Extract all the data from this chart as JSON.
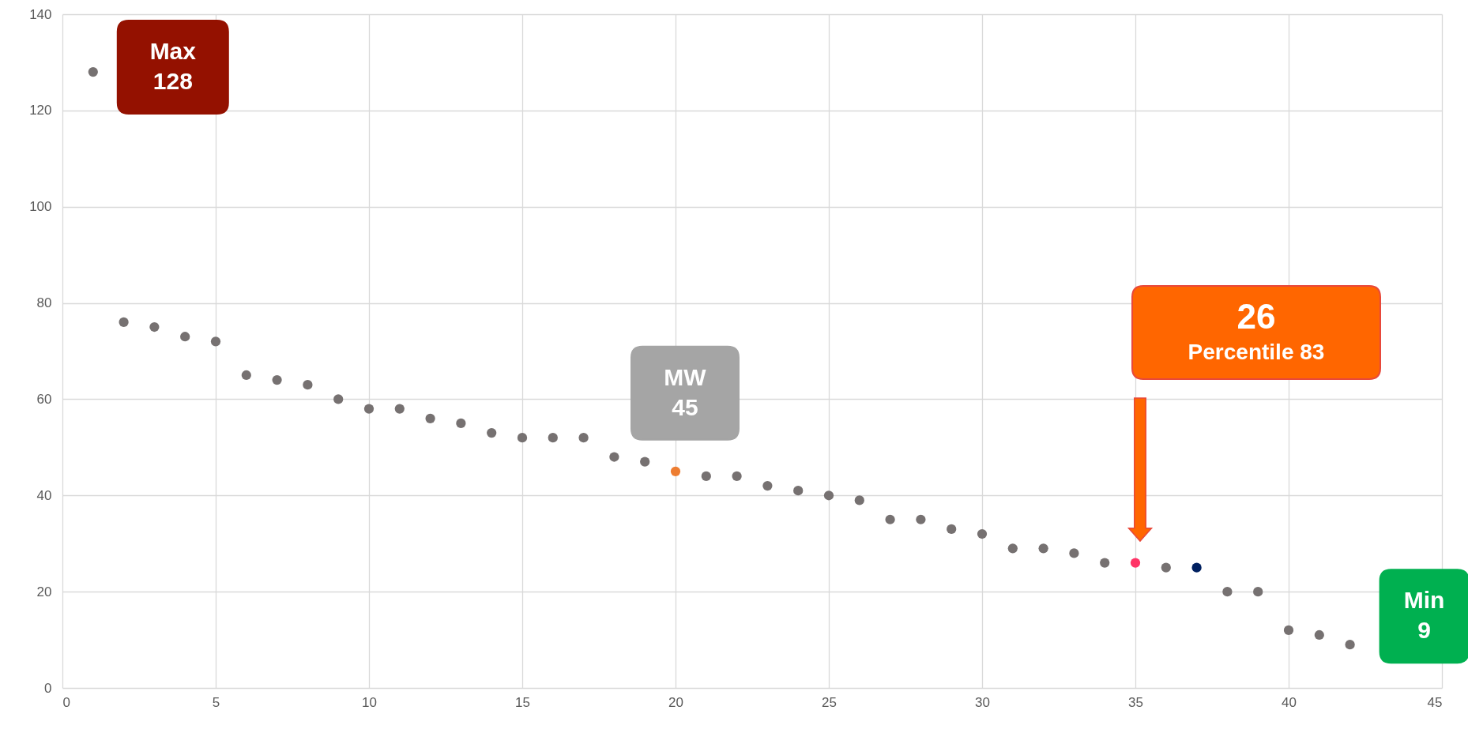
{
  "chart_data": {
    "type": "scatter",
    "x": [
      1,
      2,
      3,
      4,
      5,
      6,
      7,
      8,
      9,
      10,
      11,
      12,
      13,
      14,
      15,
      16,
      17,
      18,
      19,
      20,
      21,
      22,
      23,
      24,
      25,
      26,
      27,
      28,
      29,
      30,
      31,
      32,
      33,
      34,
      35,
      36,
      37,
      38,
      39,
      40,
      41,
      42
    ],
    "values": [
      128,
      76,
      75,
      73,
      72,
      65,
      64,
      63,
      60,
      58,
      58,
      56,
      55,
      53,
      52,
      52,
      52,
      48,
      47,
      45,
      44,
      44,
      42,
      41,
      40,
      39,
      35,
      35,
      33,
      32,
      29,
      29,
      28,
      26,
      26,
      25,
      25,
      20,
      20,
      12,
      11,
      9
    ],
    "colors": [
      "#767171",
      "#767171",
      "#767171",
      "#767171",
      "#767171",
      "#767171",
      "#767171",
      "#767171",
      "#767171",
      "#767171",
      "#767171",
      "#767171",
      "#767171",
      "#767171",
      "#767171",
      "#767171",
      "#767171",
      "#767171",
      "#767171",
      "#ed7d31",
      "#767171",
      "#767171",
      "#767171",
      "#767171",
      "#767171",
      "#767171",
      "#767171",
      "#767171",
      "#767171",
      "#767171",
      "#767171",
      "#767171",
      "#767171",
      "#767171",
      "#ff3366",
      "#767171",
      "#002060",
      "#767171",
      "#767171",
      "#767171",
      "#767171",
      "#767171"
    ],
    "xlim": [
      0,
      45
    ],
    "xticks": [
      0,
      5,
      10,
      15,
      20,
      25,
      30,
      35,
      40,
      45
    ],
    "ylim": [
      0,
      140
    ],
    "yticks": [
      0,
      20,
      40,
      60,
      80,
      100,
      120,
      140
    ],
    "grid": true,
    "marker": "circle",
    "legend": false,
    "annotations": [
      {
        "text": "Max\n128",
        "x": 1,
        "y": 128
      },
      {
        "text": "MW\n45",
        "x": 20,
        "y": 45
      },
      "26\nPercentile 83",
      {
        "text": "Min\n9",
        "x": 42,
        "y": 9
      }
    ]
  }
}
